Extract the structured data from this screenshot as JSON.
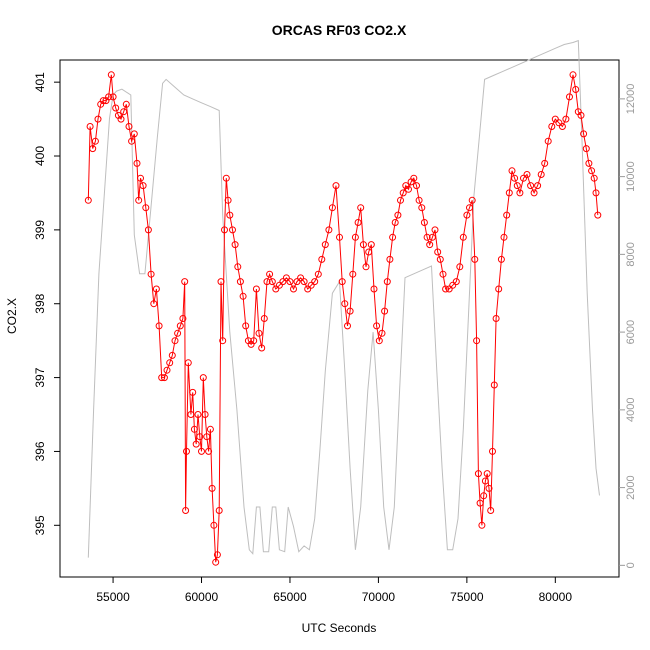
{
  "chart_data": {
    "type": "scatter",
    "title": "ORCAS RF03 CO2.X",
    "xlabel": "UTC Seconds",
    "ylabel": "CO2.X",
    "xlim": [
      52000,
      83600
    ],
    "ylim": [
      394.3,
      401.3
    ],
    "ylim_right": [
      -300,
      13000
    ],
    "x_ticks": [
      55000,
      60000,
      65000,
      70000,
      75000,
      80000
    ],
    "y_ticks": [
      395,
      396,
      397,
      398,
      399,
      400,
      401
    ],
    "y_ticks_right": [
      0,
      2000,
      4000,
      6000,
      8000,
      10000,
      12000
    ],
    "colors": {
      "co2": "#ff0000",
      "altitude": "#bebebe"
    },
    "series": [
      {
        "marker": "open-circle",
        "points": [
          [
            53600,
            399.4
          ],
          [
            53700,
            400.4
          ],
          [
            53850,
            400.1
          ],
          [
            54000,
            400.2
          ],
          [
            54150,
            400.5
          ],
          [
            54300,
            400.7
          ],
          [
            54450,
            400.75
          ],
          [
            54600,
            400.75
          ],
          [
            54750,
            400.8
          ],
          [
            54900,
            401.1
          ],
          [
            55000,
            400.8
          ],
          [
            55150,
            400.65
          ],
          [
            55300,
            400.55
          ],
          [
            55450,
            400.5
          ],
          [
            55600,
            400.6
          ],
          [
            55750,
            400.7
          ],
          [
            55900,
            400.4
          ],
          [
            56050,
            400.2
          ],
          [
            56200,
            400.3
          ],
          [
            56350,
            399.9
          ],
          [
            56450,
            399.4
          ],
          [
            56550,
            399.7
          ],
          [
            56700,
            399.6
          ],
          [
            56850,
            399.3
          ],
          [
            57000,
            399.0
          ],
          [
            57150,
            398.4
          ],
          [
            57300,
            398.0
          ],
          [
            57450,
            398.2
          ],
          [
            57600,
            397.7
          ],
          [
            57750,
            397.0
          ],
          [
            57900,
            397.0
          ],
          [
            58050,
            397.1
          ],
          [
            58200,
            397.2
          ],
          [
            58350,
            397.3
          ],
          [
            58500,
            397.5
          ],
          [
            58650,
            397.6
          ],
          [
            58800,
            397.7
          ],
          [
            58950,
            397.8
          ],
          [
            59050,
            398.3
          ],
          [
            59100,
            395.2
          ],
          [
            59150,
            396.0
          ],
          [
            59250,
            397.2
          ],
          [
            59400,
            396.5
          ],
          [
            59500,
            396.8
          ],
          [
            59600,
            396.3
          ],
          [
            59700,
            396.1
          ],
          [
            59800,
            396.5
          ],
          [
            59900,
            396.2
          ],
          [
            60000,
            396.0
          ],
          [
            60100,
            397.0
          ],
          [
            60200,
            396.5
          ],
          [
            60300,
            396.2
          ],
          [
            60400,
            396.0
          ],
          [
            60500,
            396.3
          ],
          [
            60600,
            395.5
          ],
          [
            60700,
            395.0
          ],
          [
            60800,
            394.5
          ],
          [
            60900,
            394.6
          ],
          [
            61000,
            395.2
          ],
          [
            61100,
            398.3
          ],
          [
            61200,
            397.5
          ],
          [
            61300,
            399.0
          ],
          [
            61400,
            399.7
          ],
          [
            61500,
            399.4
          ],
          [
            61600,
            399.2
          ],
          [
            61750,
            399.0
          ],
          [
            61900,
            398.8
          ],
          [
            62050,
            398.5
          ],
          [
            62200,
            398.3
          ],
          [
            62350,
            398.1
          ],
          [
            62500,
            397.7
          ],
          [
            62650,
            397.5
          ],
          [
            62800,
            397.45
          ],
          [
            62950,
            397.5
          ],
          [
            63100,
            398.2
          ],
          [
            63250,
            397.6
          ],
          [
            63400,
            397.4
          ],
          [
            63550,
            397.8
          ],
          [
            63700,
            398.3
          ],
          [
            63850,
            398.4
          ],
          [
            64000,
            398.3
          ],
          [
            64200,
            398.2
          ],
          [
            64400,
            398.25
          ],
          [
            64600,
            398.3
          ],
          [
            64800,
            398.35
          ],
          [
            65000,
            398.3
          ],
          [
            65200,
            398.2
          ],
          [
            65400,
            398.3
          ],
          [
            65600,
            398.35
          ],
          [
            65800,
            398.3
          ],
          [
            66000,
            398.2
          ],
          [
            66200,
            398.25
          ],
          [
            66400,
            398.3
          ],
          [
            66600,
            398.4
          ],
          [
            66800,
            398.6
          ],
          [
            67000,
            398.8
          ],
          [
            67200,
            399.0
          ],
          [
            67400,
            399.3
          ],
          [
            67600,
            399.6
          ],
          [
            67800,
            398.9
          ],
          [
            67950,
            398.3
          ],
          [
            68100,
            398.0
          ],
          [
            68250,
            397.7
          ],
          [
            68400,
            397.9
          ],
          [
            68550,
            398.4
          ],
          [
            68700,
            398.9
          ],
          [
            68850,
            399.1
          ],
          [
            69000,
            399.3
          ],
          [
            69150,
            398.8
          ],
          [
            69300,
            398.5
          ],
          [
            69450,
            398.7
          ],
          [
            69600,
            398.8
          ],
          [
            69750,
            398.2
          ],
          [
            69900,
            397.7
          ],
          [
            70050,
            397.5
          ],
          [
            70200,
            397.6
          ],
          [
            70350,
            397.9
          ],
          [
            70500,
            398.3
          ],
          [
            70650,
            398.6
          ],
          [
            70800,
            398.9
          ],
          [
            70950,
            399.1
          ],
          [
            71100,
            399.2
          ],
          [
            71250,
            399.4
          ],
          [
            71400,
            399.5
          ],
          [
            71550,
            399.6
          ],
          [
            71700,
            399.55
          ],
          [
            71850,
            399.65
          ],
          [
            72000,
            399.7
          ],
          [
            72150,
            399.6
          ],
          [
            72300,
            399.4
          ],
          [
            72450,
            399.3
          ],
          [
            72600,
            399.1
          ],
          [
            72750,
            398.9
          ],
          [
            72900,
            398.8
          ],
          [
            73050,
            398.9
          ],
          [
            73200,
            399.0
          ],
          [
            73350,
            398.7
          ],
          [
            73500,
            398.6
          ],
          [
            73650,
            398.4
          ],
          [
            73800,
            398.2
          ],
          [
            74000,
            398.2
          ],
          [
            74200,
            398.25
          ],
          [
            74400,
            398.3
          ],
          [
            74600,
            398.5
          ],
          [
            74800,
            398.9
          ],
          [
            75000,
            399.2
          ],
          [
            75150,
            399.3
          ],
          [
            75300,
            399.4
          ],
          [
            75450,
            398.6
          ],
          [
            75550,
            397.5
          ],
          [
            75650,
            395.7
          ],
          [
            75750,
            395.3
          ],
          [
            75850,
            395.0
          ],
          [
            75950,
            395.4
          ],
          [
            76050,
            395.6
          ],
          [
            76150,
            395.7
          ],
          [
            76250,
            395.5
          ],
          [
            76350,
            395.2
          ],
          [
            76450,
            396.0
          ],
          [
            76550,
            396.9
          ],
          [
            76650,
            397.8
          ],
          [
            76800,
            398.2
          ],
          [
            76950,
            398.6
          ],
          [
            77100,
            398.9
          ],
          [
            77250,
            399.2
          ],
          [
            77400,
            399.5
          ],
          [
            77550,
            399.8
          ],
          [
            77700,
            399.7
          ],
          [
            77850,
            399.6
          ],
          [
            78000,
            399.5
          ],
          [
            78200,
            399.7
          ],
          [
            78400,
            399.75
          ],
          [
            78600,
            399.6
          ],
          [
            78800,
            399.5
          ],
          [
            79000,
            399.6
          ],
          [
            79200,
            399.75
          ],
          [
            79400,
            399.9
          ],
          [
            79600,
            400.2
          ],
          [
            79800,
            400.4
          ],
          [
            80000,
            400.5
          ],
          [
            80200,
            400.45
          ],
          [
            80400,
            400.4
          ],
          [
            80600,
            400.5
          ],
          [
            80800,
            400.8
          ],
          [
            81000,
            401.1
          ],
          [
            81150,
            400.9
          ],
          [
            81300,
            400.6
          ],
          [
            81450,
            400.55
          ],
          [
            81600,
            400.3
          ],
          [
            81750,
            400.1
          ],
          [
            81900,
            399.9
          ],
          [
            82050,
            399.8
          ],
          [
            82200,
            399.7
          ],
          [
            82300,
            399.5
          ],
          [
            82400,
            399.2
          ]
        ]
      },
      {
        "axis": "right",
        "points": [
          [
            53600,
            200
          ],
          [
            53900,
            4000
          ],
          [
            54200,
            7500
          ],
          [
            54500,
            9500
          ],
          [
            54800,
            11500
          ],
          [
            55000,
            12100
          ],
          [
            55200,
            12200
          ],
          [
            55500,
            12250
          ],
          [
            56000,
            12100
          ],
          [
            56200,
            8500
          ],
          [
            56500,
            7500
          ],
          [
            56800,
            7500
          ],
          [
            57200,
            9500
          ],
          [
            57500,
            11000
          ],
          [
            57800,
            12400
          ],
          [
            58000,
            12500
          ],
          [
            58500,
            12300
          ],
          [
            59000,
            12100
          ],
          [
            59500,
            12000
          ],
          [
            60000,
            11900
          ],
          [
            60500,
            11800
          ],
          [
            61000,
            11700
          ],
          [
            61200,
            9000
          ],
          [
            61600,
            6000
          ],
          [
            62000,
            4000
          ],
          [
            62400,
            1500
          ],
          [
            62700,
            400
          ],
          [
            62900,
            300
          ],
          [
            63100,
            1500
          ],
          [
            63300,
            1500
          ],
          [
            63500,
            350
          ],
          [
            63800,
            350
          ],
          [
            64000,
            1500
          ],
          [
            64200,
            1500
          ],
          [
            64400,
            400
          ],
          [
            64700,
            350
          ],
          [
            64900,
            1500
          ],
          [
            65200,
            1000
          ],
          [
            65500,
            350
          ],
          [
            65800,
            500
          ],
          [
            66100,
            400
          ],
          [
            66400,
            1200
          ],
          [
            66700,
            3000
          ],
          [
            67000,
            5000
          ],
          [
            67400,
            7000
          ],
          [
            67800,
            7300
          ],
          [
            68100,
            5000
          ],
          [
            68400,
            2500
          ],
          [
            68700,
            400
          ],
          [
            69000,
            1500
          ],
          [
            69400,
            4500
          ],
          [
            69700,
            6000
          ],
          [
            70000,
            4000
          ],
          [
            70300,
            1500
          ],
          [
            70600,
            400
          ],
          [
            70900,
            1500
          ],
          [
            71200,
            4500
          ],
          [
            71500,
            7400
          ],
          [
            72000,
            7500
          ],
          [
            72500,
            7600
          ],
          [
            73000,
            7700
          ],
          [
            73300,
            5000
          ],
          [
            73600,
            2500
          ],
          [
            73900,
            400
          ],
          [
            74200,
            400
          ],
          [
            74500,
            1200
          ],
          [
            74800,
            3500
          ],
          [
            75100,
            6500
          ],
          [
            75400,
            9500
          ],
          [
            75700,
            11000
          ],
          [
            76000,
            12500
          ],
          [
            76500,
            12600
          ],
          [
            77000,
            12700
          ],
          [
            77500,
            12800
          ],
          [
            78000,
            12900
          ],
          [
            78500,
            13000
          ],
          [
            79000,
            13100
          ],
          [
            79500,
            13200
          ],
          [
            80000,
            13300
          ],
          [
            80500,
            13400
          ],
          [
            81000,
            13450
          ],
          [
            81300,
            13500
          ],
          [
            81500,
            11000
          ],
          [
            81800,
            7000
          ],
          [
            82100,
            4000
          ],
          [
            82300,
            2500
          ],
          [
            82500,
            1800
          ]
        ]
      }
    ]
  }
}
